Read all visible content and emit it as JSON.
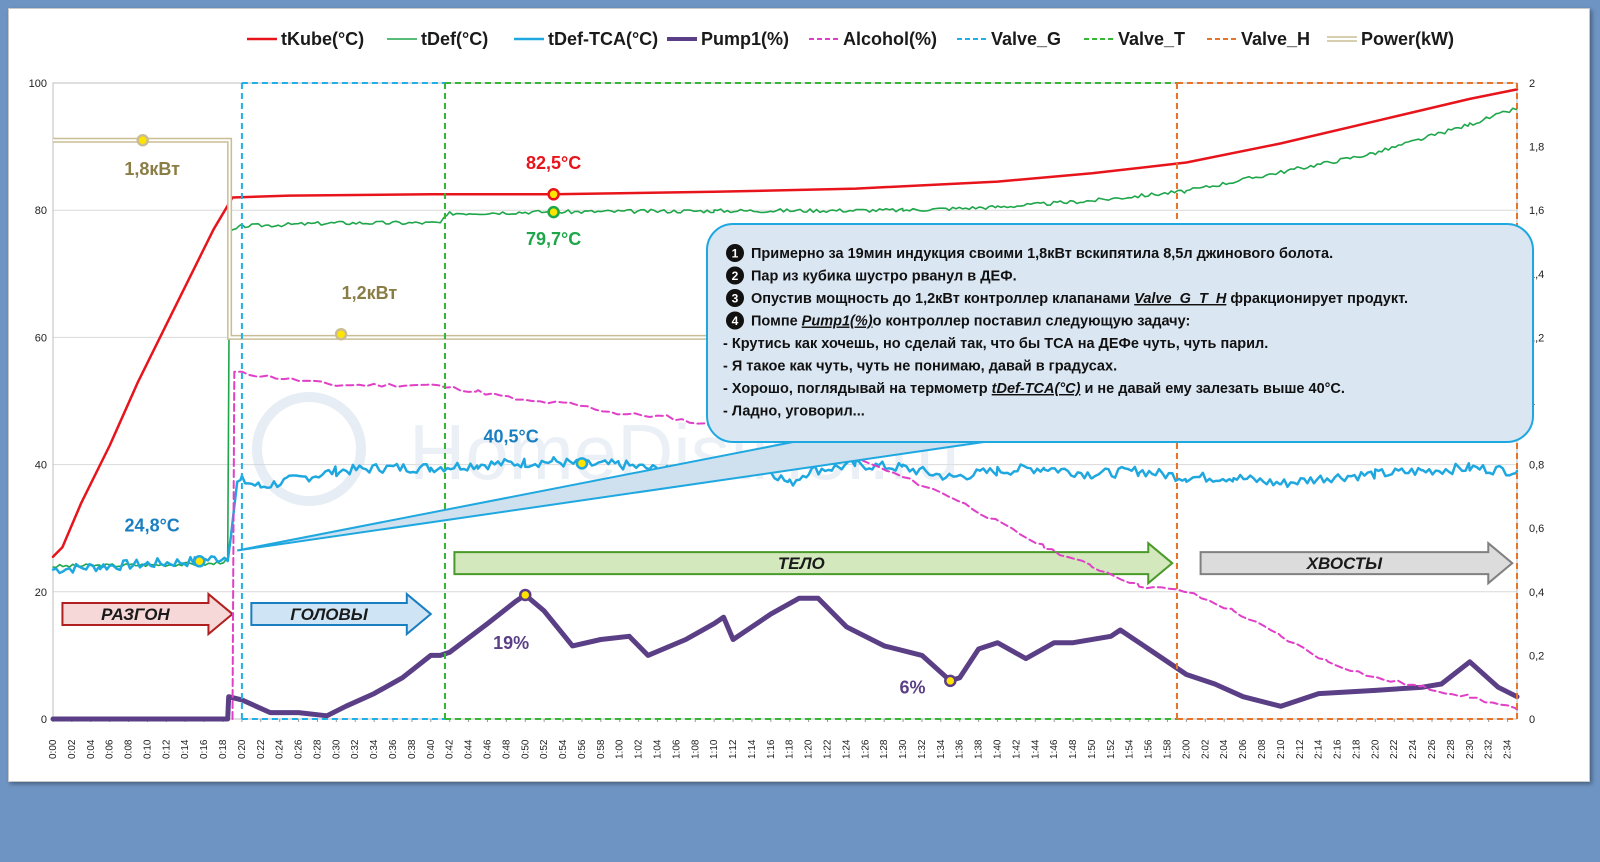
{
  "chart_data": {
    "type": "line",
    "y_left": {
      "min": 0,
      "max": 100,
      "ticks": [
        "0",
        "20",
        "40",
        "60",
        "80",
        "100"
      ]
    },
    "y_right": {
      "min": 0,
      "max": 2,
      "ticks": [
        "0",
        "0,2",
        "0,4",
        "0,6",
        "0,8",
        "1",
        "1,2",
        "1,4",
        "1,6",
        "1,8",
        "2"
      ]
    },
    "x": {
      "min_minutes": 0,
      "max_minutes": 155,
      "tick_step_minutes": 2
    },
    "legend": [
      {
        "key": "tkube",
        "label": "tKube(°C)",
        "color": "#e8141c",
        "style": "solid",
        "width": 2.5
      },
      {
        "key": "tdef",
        "label": "tDef(°C)",
        "color": "#1ea64a",
        "style": "solid",
        "width": 1.6
      },
      {
        "key": "tca",
        "label": "tDef-TCA(°C)",
        "color": "#1fa8e0",
        "style": "solid",
        "width": 2.5
      },
      {
        "key": "pump",
        "label": "Pump1(%)",
        "color": "#5b3f86",
        "style": "solid",
        "width": 5
      },
      {
        "key": "alcohol",
        "label": "Alcohol(%)",
        "color": "#e040c8",
        "style": "dash",
        "width": 2
      },
      {
        "key": "valveg",
        "label": "Valve_G",
        "color": "#1fb0e8",
        "style": "dash",
        "width": 2
      },
      {
        "key": "valvet",
        "label": "Valve_T",
        "color": "#36b536",
        "style": "dash",
        "width": 2
      },
      {
        "key": "valveh",
        "label": "Valve_H",
        "color": "#e8742a",
        "style": "dash",
        "width": 2
      },
      {
        "key": "power",
        "label": "Power(kW)",
        "color": "#c8bd94",
        "style": "double",
        "width": 2
      }
    ],
    "series": [
      {
        "key": "tkube",
        "axis": "left",
        "points": [
          [
            0,
            25.5
          ],
          [
            1,
            27
          ],
          [
            3,
            34
          ],
          [
            6,
            43
          ],
          [
            9,
            53
          ],
          [
            12,
            62
          ],
          [
            15,
            71
          ],
          [
            17,
            77
          ],
          [
            19,
            82
          ],
          [
            25,
            82.3
          ],
          [
            40,
            82.5
          ],
          [
            53,
            82.5
          ],
          [
            70,
            82.9
          ],
          [
            85,
            83.4
          ],
          [
            100,
            84.5
          ],
          [
            110,
            85.8
          ],
          [
            120,
            87.5
          ],
          [
            130,
            90.5
          ],
          [
            140,
            94
          ],
          [
            150,
            97.5
          ],
          [
            155,
            99
          ]
        ]
      },
      {
        "key": "tdef",
        "axis": "left",
        "points": [
          [
            0,
            24
          ],
          [
            17,
            24.4
          ],
          [
            18.5,
            25
          ],
          [
            18.7,
            76.5
          ],
          [
            20,
            77.5
          ],
          [
            30,
            78
          ],
          [
            41,
            78
          ],
          [
            42,
            79.5
          ],
          [
            50,
            79.7
          ],
          [
            70,
            79.9
          ],
          [
            90,
            80
          ],
          [
            100,
            80.5
          ],
          [
            110,
            81.5
          ],
          [
            120,
            83
          ],
          [
            130,
            86
          ],
          [
            140,
            89
          ],
          [
            150,
            93.5
          ],
          [
            155,
            96
          ]
        ]
      },
      {
        "key": "tca",
        "axis": "left",
        "points": [
          [
            0,
            23.5
          ],
          [
            5,
            24
          ],
          [
            10,
            24.4
          ],
          [
            15,
            24.8
          ],
          [
            18.5,
            25.5
          ],
          [
            19.5,
            37
          ],
          [
            20,
            37.5
          ],
          [
            22,
            36.5
          ],
          [
            25,
            37.5
          ],
          [
            30,
            39
          ],
          [
            35,
            39.5
          ],
          [
            40,
            39.5
          ],
          [
            45,
            40
          ],
          [
            50,
            40.3
          ],
          [
            53,
            40.5
          ],
          [
            56,
            40
          ],
          [
            60,
            40
          ],
          [
            65,
            39
          ],
          [
            70,
            38.5
          ],
          [
            75,
            40
          ],
          [
            78,
            37
          ],
          [
            80,
            39
          ],
          [
            85,
            40
          ],
          [
            90,
            39.5
          ],
          [
            95,
            38
          ],
          [
            100,
            39
          ],
          [
            105,
            39.5
          ],
          [
            110,
            38.5
          ],
          [
            115,
            39
          ],
          [
            120,
            38
          ],
          [
            125,
            38
          ],
          [
            130,
            37
          ],
          [
            135,
            38
          ],
          [
            140,
            38.5
          ],
          [
            145,
            39
          ],
          [
            150,
            39.5
          ],
          [
            155,
            39
          ]
        ]
      },
      {
        "key": "pump",
        "axis": "right",
        "points": [
          [
            0,
            0
          ],
          [
            18.5,
            0
          ],
          [
            18.6,
            0.07
          ],
          [
            20,
            0.06
          ],
          [
            23,
            0.02
          ],
          [
            26,
            0.02
          ],
          [
            29,
            0.01
          ],
          [
            31,
            0.04
          ],
          [
            34,
            0.08
          ],
          [
            37,
            0.13
          ],
          [
            40,
            0.2
          ],
          [
            41,
            0.2
          ],
          [
            42,
            0.21
          ],
          [
            46,
            0.3
          ],
          [
            49,
            0.37
          ],
          [
            50,
            0.39
          ],
          [
            52,
            0.34
          ],
          [
            55,
            0.23
          ],
          [
            58,
            0.25
          ],
          [
            61,
            0.26
          ],
          [
            63,
            0.2
          ],
          [
            67,
            0.25
          ],
          [
            70,
            0.3
          ],
          [
            71,
            0.32
          ],
          [
            72,
            0.25
          ],
          [
            76,
            0.33
          ],
          [
            79,
            0.38
          ],
          [
            81,
            0.38
          ],
          [
            84,
            0.29
          ],
          [
            88,
            0.23
          ],
          [
            92,
            0.2
          ],
          [
            95,
            0.12
          ],
          [
            96,
            0.13
          ],
          [
            98,
            0.22
          ],
          [
            100,
            0.24
          ],
          [
            103,
            0.19
          ],
          [
            106,
            0.24
          ],
          [
            108,
            0.24
          ],
          [
            112,
            0.26
          ],
          [
            113,
            0.28
          ],
          [
            116,
            0.22
          ],
          [
            120,
            0.14
          ],
          [
            123,
            0.11
          ],
          [
            126,
            0.07
          ],
          [
            130,
            0.04
          ],
          [
            134,
            0.08
          ],
          [
            140,
            0.09
          ],
          [
            145,
            0.1
          ],
          [
            147,
            0.11
          ],
          [
            150,
            0.18
          ],
          [
            153,
            0.1
          ],
          [
            155,
            0.07
          ]
        ]
      },
      {
        "key": "alcohol",
        "axis": "right",
        "points": [
          [
            19,
            0
          ],
          [
            19.2,
            1.09
          ],
          [
            22,
            1.08
          ],
          [
            30,
            1.05
          ],
          [
            40,
            1.05
          ],
          [
            45,
            1.03
          ],
          [
            50,
            1
          ],
          [
            55,
            0.99
          ],
          [
            60,
            0.96
          ],
          [
            65,
            0.95
          ],
          [
            70,
            0.92
          ],
          [
            75,
            0.88
          ],
          [
            80,
            0.86
          ],
          [
            85,
            0.82
          ],
          [
            90,
            0.76
          ],
          [
            95,
            0.7
          ],
          [
            100,
            0.62
          ],
          [
            105,
            0.54
          ],
          [
            110,
            0.48
          ],
          [
            115,
            0.42
          ],
          [
            120,
            0.4
          ],
          [
            125,
            0.34
          ],
          [
            130,
            0.26
          ],
          [
            135,
            0.18
          ],
          [
            140,
            0.13
          ],
          [
            145,
            0.1
          ],
          [
            150,
            0.07
          ],
          [
            155,
            0.03
          ]
        ]
      },
      {
        "key": "power",
        "axis": "right",
        "points": [
          [
            0,
            1.82
          ],
          [
            18.7,
            1.82
          ],
          [
            18.7,
            1.2
          ],
          [
            50,
            1.2
          ],
          [
            70,
            1.2
          ]
        ]
      }
    ],
    "markers": [
      {
        "series": "power",
        "x": 9.5,
        "y": 1.82,
        "axis": "right"
      },
      {
        "series": "power",
        "x": 30.5,
        "y": 1.21,
        "axis": "right"
      },
      {
        "series": "tkube",
        "x": 53,
        "y": 82.5,
        "axis": "left"
      },
      {
        "series": "tdef",
        "x": 53,
        "y": 79.7,
        "axis": "left"
      },
      {
        "series": "tca",
        "x": 15.5,
        "y": 24.8,
        "axis": "left"
      },
      {
        "series": "tca",
        "x": 56,
        "y": 40.2,
        "axis": "left"
      },
      {
        "series": "pump",
        "x": 50,
        "y": 0.39,
        "axis": "right"
      },
      {
        "series": "pump",
        "x": 95,
        "y": 0.12,
        "axis": "right"
      }
    ],
    "valves": [
      {
        "key": "valveg",
        "x_start": 20,
        "x_end": 41.5
      },
      {
        "key": "valvet",
        "x_start": 41.5,
        "x_end": 119
      },
      {
        "key": "valveh",
        "x_start": 119,
        "x_end": 155
      }
    ],
    "annotations": [
      {
        "text": "1,8кВт",
        "color": "#8a7d45",
        "x": 10.5,
        "y_right": 1.71
      },
      {
        "text": "1,2кВт",
        "color": "#8a7d45",
        "x": 33.5,
        "y_right": 1.32
      },
      {
        "text": "82,5°C",
        "color": "#e8141c",
        "x": 53,
        "y_left": 86.5
      },
      {
        "text": "79,7°C",
        "color": "#1ea64a",
        "x": 53,
        "y_left": 74.5
      },
      {
        "text": "24,8°C",
        "color": "#1a7fc0",
        "x": 10.5,
        "y_left": 29.5
      },
      {
        "text": "40,5°C",
        "color": "#1a7fc0",
        "x": 48.5,
        "y_left": 43.5
      },
      {
        "text": "19%",
        "color": "#5b3f86",
        "x": 48.5,
        "y_right": 0.22
      },
      {
        "text": "6%",
        "color": "#5b3f86",
        "x": 91,
        "y_right": 0.08
      }
    ],
    "phases": [
      {
        "label": "РАЗГОН",
        "x_start": 1,
        "x_end": 19,
        "color": "#f6d8d8",
        "stroke": "#b02020",
        "y_left": 16.5
      },
      {
        "label": "ГОЛОВЫ",
        "x_start": 21,
        "x_end": 40,
        "color": "#cfe5f5",
        "stroke": "#1a7fc0",
        "y_left": 16.5
      },
      {
        "label": "ТЕЛО",
        "x_start": 42.5,
        "x_end": 118.5,
        "color": "#d3e8bd",
        "stroke": "#4a9a2a",
        "y_left": 24.5
      },
      {
        "label": "ХВОСТЫ",
        "x_start": 121.5,
        "x_end": 154.5,
        "color": "#dcdcdc",
        "stroke": "#808080",
        "y_left": 24.5
      }
    ],
    "watermark": "HomeDistiller.ru",
    "callout": {
      "numbers": [
        "1",
        "2",
        "3",
        "4"
      ],
      "lines": [
        {
          "num": "1",
          "parts": [
            {
              "t": "Примерно за 19мин индукция своими 1,8кВт вскипятила 8,5л джинового болота."
            }
          ]
        },
        {
          "num": "2",
          "parts": [
            {
              "t": "Пар из кубика шустро рванул в ДЕФ."
            }
          ]
        },
        {
          "num": "3",
          "parts": [
            {
              "t": "Опустив мощность до 1,2кВт контроллер клапанами "
            },
            {
              "t": "Valve_G_T_H",
              "u": true
            },
            {
              "t": " фракционирует продукт."
            }
          ]
        },
        {
          "num": "4",
          "parts": [
            {
              "t": "Помпе "
            },
            {
              "t": "Pump1(%)",
              "u": true
            },
            {
              "t": "о контроллер поставил следующую задачу:"
            }
          ]
        },
        {
          "num": "",
          "parts": [
            {
              "t": "- Крутись как хочешь, но сделай так, что бы ТСА на ДЕФе чуть, чуть парил."
            }
          ]
        },
        {
          "num": "",
          "parts": [
            {
              "t": "- Я такое как чуть, чуть не понимаю, давай в градусах."
            }
          ]
        },
        {
          "num": "",
          "parts": [
            {
              "t": "- Хорошо, поглядывай на термометр "
            },
            {
              "t": "tDef-TCA(°C)",
              "u": true
            },
            {
              "t": " и не давай ему залезать выше 40°C."
            }
          ]
        },
        {
          "num": "",
          "parts": [
            {
              "t": "- Ладно, уговорил..."
            }
          ]
        }
      ]
    }
  }
}
